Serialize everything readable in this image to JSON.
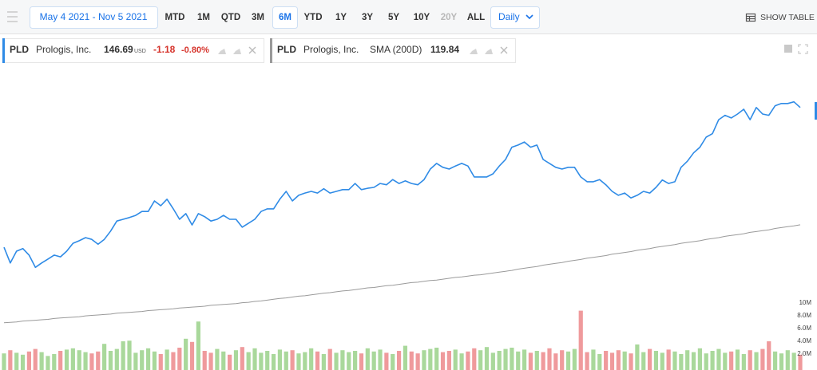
{
  "toolbar": {
    "date_range": "May 4 2021 - Nov 5 2021",
    "ranges": [
      "MTD",
      "1M",
      "QTD",
      "3M",
      "6M",
      "YTD",
      "1Y",
      "3Y",
      "5Y",
      "10Y",
      "20Y",
      "ALL"
    ],
    "active_range": "6M",
    "disabled_ranges": [
      "20Y"
    ],
    "interval": "Daily",
    "show_table": "SHOW TABLE"
  },
  "legend": [
    {
      "symbol": "PLD",
      "name": "Prologis, Inc.",
      "price": "146.69",
      "currency": "USD",
      "change": "-1.18",
      "change_pct": "-0.80%"
    },
    {
      "symbol": "PLD",
      "name": "Prologis, Inc.",
      "value": "119.84"
    }
  ],
  "chart_data": {
    "type": "line",
    "series": [
      {
        "name": "PLD",
        "color": "#2f8be6",
        "values": [
          114.7,
          111.1,
          113.8,
          114.4,
          112.9,
          110.1,
          111.1,
          112.0,
          112.9,
          112.5,
          113.8,
          115.6,
          116.2,
          116.9,
          116.5,
          115.4,
          116.5,
          118.4,
          120.7,
          121.1,
          121.5,
          122.0,
          122.9,
          122.9,
          125.3,
          124.2,
          125.7,
          123.5,
          121.1,
          122.4,
          119.8,
          122.4,
          121.7,
          120.7,
          121.1,
          122.0,
          121.1,
          121.1,
          119.3,
          120.2,
          121.1,
          122.9,
          123.5,
          123.5,
          125.7,
          127.5,
          125.3,
          126.6,
          127.1,
          127.5,
          127.1,
          128.1,
          127.1,
          127.5,
          127.9,
          127.9,
          129.3,
          127.9,
          128.2,
          128.4,
          129.3,
          129.0,
          130.2,
          129.3,
          129.9,
          129.3,
          129.0,
          130.2,
          132.6,
          133.9,
          133.0,
          132.6,
          133.3,
          133.9,
          133.3,
          130.8,
          130.8,
          130.8,
          131.5,
          133.3,
          134.8,
          137.6,
          138.1,
          138.8,
          137.6,
          138.1,
          134.8,
          133.9,
          133.0,
          132.6,
          133.0,
          133.0,
          130.8,
          129.7,
          129.7,
          130.2,
          129.0,
          127.5,
          126.6,
          127.1,
          126.0,
          126.6,
          127.5,
          127.1,
          128.4,
          130.1,
          129.3,
          129.7,
          133.0,
          134.4,
          136.3,
          137.6,
          139.9,
          140.7,
          143.9,
          144.9,
          144.3,
          145.2,
          146.3,
          143.9,
          146.7,
          145.2,
          144.9,
          147.1,
          147.6,
          147.6,
          148.0,
          146.69
        ]
      },
      {
        "name": "SMA (200D)",
        "color": "#9a9a9a",
        "values": [
          97.4,
          97.5,
          97.6,
          97.8,
          97.9,
          98.0,
          98.1,
          98.2,
          98.4,
          98.5,
          98.6,
          98.7,
          98.8,
          99.0,
          99.1,
          99.2,
          99.3,
          99.4,
          99.6,
          99.7,
          99.8,
          99.9,
          100.0,
          100.2,
          100.3,
          100.4,
          100.5,
          100.6,
          100.8,
          100.9,
          101.0,
          101.1,
          101.2,
          101.4,
          101.5,
          101.6,
          101.7,
          101.8,
          102.0,
          102.1,
          102.3,
          102.4,
          102.6,
          102.8,
          103.0,
          103.1,
          103.3,
          103.5,
          103.6,
          103.8,
          104.0,
          104.2,
          104.3,
          104.5,
          104.7,
          104.8,
          105.0,
          105.2,
          105.4,
          105.5,
          105.7,
          105.9,
          106.0,
          106.2,
          106.4,
          106.6,
          106.7,
          106.9,
          107.1,
          107.2,
          107.4,
          107.6,
          107.8,
          107.9,
          108.1,
          108.3,
          108.4,
          108.6,
          108.8,
          109.0,
          109.2,
          109.4,
          109.7,
          109.9,
          110.1,
          110.3,
          110.6,
          110.8,
          111.0,
          111.2,
          111.5,
          111.7,
          111.9,
          112.2,
          112.4,
          112.6,
          112.8,
          113.1,
          113.3,
          113.5,
          113.7,
          114.0,
          114.2,
          114.4,
          114.7,
          114.9,
          115.1,
          115.3,
          115.6,
          115.8,
          116.0,
          116.2,
          116.5,
          116.7,
          116.9,
          117.2,
          117.4,
          117.6,
          117.8,
          118.1,
          118.3,
          118.5,
          118.7,
          119.0,
          119.2,
          119.4,
          119.6,
          119.84
        ]
      }
    ],
    "ylim": [
      86.6,
      156.7
    ],
    "volume": {
      "up_color": "#a9d89b",
      "down_color": "#ef9a9c",
      "ylim": [
        0,
        10000000
      ],
      "yticks": [
        {
          "value": 2000000,
          "label": "2.0M"
        },
        {
          "value": 4000000,
          "label": "4.0M"
        },
        {
          "value": 6000000,
          "label": "6.0M"
        },
        {
          "value": 8000000,
          "label": "8.0M"
        },
        {
          "value": 10000000,
          "label": "10M"
        }
      ],
      "values": [
        2100000,
        2600000,
        2200000,
        1900000,
        2400000,
        2800000,
        2300000,
        1700000,
        2000000,
        2500000,
        2700000,
        2900000,
        2600000,
        2300000,
        2100000,
        2400000,
        3600000,
        2500000,
        2800000,
        4000000,
        4100000,
        2200000,
        2600000,
        2900000,
        2400000,
        2000000,
        2700000,
        2300000,
        3000000,
        4400000,
        3900000,
        7100000,
        2500000,
        2200000,
        2800000,
        2400000,
        1900000,
        2600000,
        3100000,
        2300000,
        2900000,
        2200000,
        2500000,
        2000000,
        2700000,
        2400000,
        2600000,
        2100000,
        2300000,
        2900000,
        2400000,
        2000000,
        2800000,
        2200000,
        2600000,
        2300000,
        2500000,
        2100000,
        2900000,
        2400000,
        2700000,
        2200000,
        2000000,
        2500000,
        3300000,
        2400000,
        2100000,
        2600000,
        2800000,
        3000000,
        2300000,
        2500000,
        2700000,
        2100000,
        2400000,
        2900000,
        2600000,
        3100000,
        2200000,
        2500000,
        2800000,
        3000000,
        2400000,
        2700000,
        2200000,
        2500000,
        2300000,
        2900000,
        2100000,
        2600000,
        2400000,
        2800000,
        8800000,
        2300000,
        2700000,
        2000000,
        2500000,
        2200000,
        2600000,
        2400000,
        2100000,
        3500000,
        2300000,
        2800000,
        2500000,
        2200000,
        2700000,
        2400000,
        2000000,
        2600000,
        2300000,
        2900000,
        2100000,
        2500000,
        2800000,
        2200000,
        2400000,
        2700000,
        2000000,
        2600000,
        2300000,
        2800000,
        4000000,
        2400000,
        2100000,
        2600000,
        2200000,
        1900000
      ]
    }
  }
}
